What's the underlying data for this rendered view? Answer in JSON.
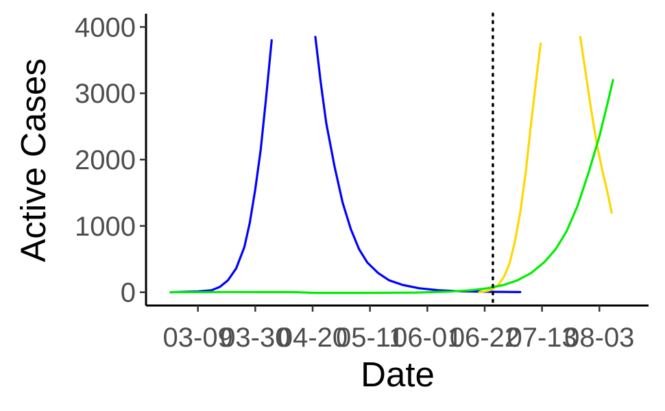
{
  "chart_data": {
    "type": "line",
    "title": "",
    "xlabel": "Date",
    "ylabel": "Active Cases",
    "x_tick_labels": [
      "03-09",
      "03-30",
      "04-20",
      "05-11",
      "06-01",
      "06-22",
      "07-13",
      "08-03"
    ],
    "x_tick_days": [
      0,
      21,
      42,
      63,
      84,
      105,
      126,
      147
    ],
    "y_ticks": [
      0,
      1000,
      2000,
      3000,
      4000
    ],
    "ylim": [
      -200,
      4200
    ],
    "xlim_days": [
      -19,
      165
    ],
    "grid": false,
    "legend": "none",
    "annotations": [
      {
        "type": "vertical-dotted-line",
        "x_day": 108,
        "color": "#000000"
      }
    ],
    "series": [
      {
        "color": "#0000ff",
        "segments": [
          [
            [
              -10,
              0
            ],
            [
              0,
              12
            ],
            [
              5,
              30
            ],
            [
              8,
              80
            ],
            [
              11,
              180
            ],
            [
              14,
              360
            ],
            [
              17,
              680
            ],
            [
              19,
              1050
            ],
            [
              21,
              1550
            ],
            [
              23,
              2150
            ],
            [
              25,
              2950
            ],
            [
              27,
              3800
            ]
          ],
          [
            [
              43,
              3850
            ],
            [
              45,
              3150
            ],
            [
              47,
              2550
            ],
            [
              50,
              1900
            ],
            [
              53,
              1350
            ],
            [
              56,
              950
            ],
            [
              59,
              650
            ],
            [
              62,
              450
            ],
            [
              66,
              290
            ],
            [
              70,
              180
            ],
            [
              75,
              110
            ],
            [
              81,
              60
            ],
            [
              88,
              30
            ],
            [
              96,
              15
            ],
            [
              105,
              8
            ],
            [
              118,
              2
            ]
          ]
        ]
      },
      {
        "color": "#ffd700",
        "segments": [
          [
            [
              103,
              0
            ],
            [
              106,
              20
            ],
            [
              108,
              50
            ],
            [
              110,
              110
            ],
            [
              112,
              230
            ],
            [
              114,
              420
            ],
            [
              116,
              750
            ],
            [
              118,
              1200
            ],
            [
              120,
              1800
            ],
            [
              122,
              2550
            ],
            [
              124,
              3250
            ],
            [
              125.5,
              3750
            ]
          ],
          [
            [
              140,
              3850
            ],
            [
              142,
              3300
            ],
            [
              144,
              2750
            ],
            [
              146,
              2250
            ],
            [
              148,
              1850
            ],
            [
              150,
              1500
            ],
            [
              151.5,
              1200
            ]
          ]
        ]
      },
      {
        "color": "#00ee00",
        "segments": [
          [
            [
              -10,
              0
            ],
            [
              10,
              3
            ],
            [
              35,
              2
            ],
            [
              43,
              -10
            ],
            [
              60,
              -10
            ],
            [
              80,
              -5
            ],
            [
              92,
              10
            ],
            [
              100,
              30
            ],
            [
              106,
              60
            ],
            [
              112,
              110
            ],
            [
              117,
              180
            ],
            [
              122,
              290
            ],
            [
              127,
              460
            ],
            [
              131,
              650
            ],
            [
              135,
              920
            ],
            [
              139,
              1300
            ],
            [
              143,
              1800
            ],
            [
              147,
              2350
            ],
            [
              150,
              2850
            ],
            [
              152,
              3200
            ]
          ]
        ]
      }
    ]
  }
}
